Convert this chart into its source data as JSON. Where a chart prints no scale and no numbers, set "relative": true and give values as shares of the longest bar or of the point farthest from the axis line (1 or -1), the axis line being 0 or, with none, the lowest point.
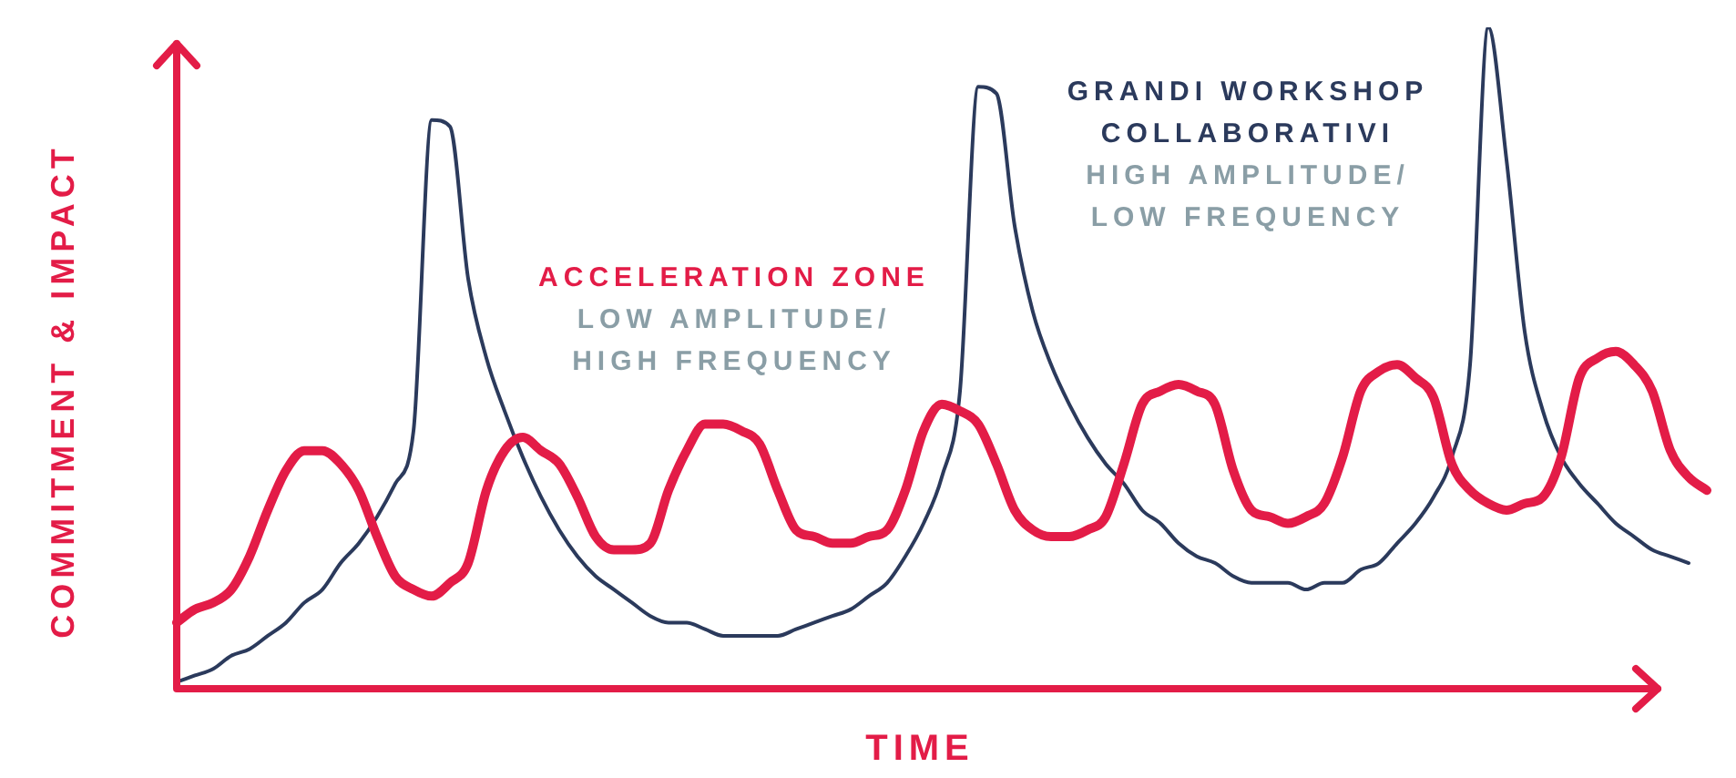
{
  "chart_data": {
    "type": "line",
    "relative": true,
    "xlabel": "TIME",
    "ylabel": "COMMITMENT & IMPACT",
    "legend": false,
    "categories": [
      null,
      null,
      null,
      null,
      null,
      null,
      null,
      null,
      null,
      null,
      null,
      null,
      null,
      null,
      null,
      null,
      null,
      null,
      null,
      null,
      null,
      null,
      null,
      null,
      null,
      null,
      null,
      null,
      null,
      null,
      null,
      null,
      null,
      null,
      null,
      null,
      null,
      null,
      null,
      null,
      null,
      null,
      null,
      null,
      null,
      null,
      null,
      null,
      null,
      null,
      null,
      null,
      null,
      null,
      null,
      null,
      null,
      null,
      null,
      null,
      null,
      null,
      null,
      null,
      null,
      null,
      null,
      null,
      null,
      null,
      null,
      null,
      null,
      null,
      null,
      null,
      null,
      null,
      null,
      null,
      null,
      null,
      null,
      null,
      null
    ],
    "series": [
      {
        "name": "ACCELERATION ZONE",
        "color": "#e31c47",
        "values": [
          0.1,
          0.12,
          0.13,
          0.15,
          0.2,
          0.27,
          0.33,
          0.36,
          0.36,
          0.34,
          0.3,
          0.23,
          0.17,
          0.15,
          0.14,
          0.16,
          0.19,
          0.3,
          0.36,
          0.38,
          0.36,
          0.34,
          0.29,
          0.23,
          0.21,
          0.21,
          0.22,
          0.3,
          0.36,
          0.4,
          0.4,
          0.39,
          0.37,
          0.3,
          0.24,
          0.23,
          0.22,
          0.22,
          0.23,
          0.24,
          0.3,
          0.39,
          0.43,
          0.42,
          0.4,
          0.34,
          0.27,
          0.24,
          0.23,
          0.23,
          0.24,
          0.26,
          0.34,
          0.43,
          0.45,
          0.46,
          0.45,
          0.43,
          0.33,
          0.27,
          0.26,
          0.25,
          0.26,
          0.28,
          0.35,
          0.45,
          0.48,
          0.49,
          0.47,
          0.44,
          0.34,
          0.3,
          0.28,
          0.27,
          0.28,
          0.29,
          0.35,
          0.47,
          0.5,
          0.51,
          0.49,
          0.45,
          0.36,
          0.32,
          0.3
        ]
      },
      {
        "name": "GRANDI WORKSHOP COLLABORATIVI",
        "color": "#2b3a5c",
        "values": [
          0.01,
          0.02,
          0.03,
          0.05,
          0.06,
          0.08,
          0.1,
          0.13,
          0.15,
          0.19,
          0.22,
          0.26,
          0.31,
          0.39,
          0.86,
          0.85,
          0.62,
          0.5,
          0.42,
          0.35,
          0.29,
          0.24,
          0.2,
          0.17,
          0.15,
          0.13,
          0.11,
          0.1,
          0.1,
          0.09,
          0.08,
          0.08,
          0.08,
          0.08,
          0.09,
          0.1,
          0.11,
          0.12,
          0.14,
          0.16,
          0.2,
          0.25,
          0.32,
          0.45,
          0.91,
          0.9,
          0.7,
          0.57,
          0.49,
          0.43,
          0.38,
          0.34,
          0.31,
          0.27,
          0.25,
          0.22,
          0.2,
          0.19,
          0.17,
          0.16,
          0.16,
          0.16,
          0.15,
          0.16,
          0.16,
          0.18,
          0.19,
          0.22,
          0.25,
          0.29,
          0.35,
          0.49,
          1,
          0.8,
          0.54,
          0.42,
          0.35,
          0.31,
          0.28,
          0.25,
          0.23,
          0.21,
          0.2,
          0.19,
          null
        ]
      }
    ],
    "annotations": [
      "LOW AMPLITUDE/\nHIGH FREQUENCY",
      "HIGH AMPLITUDE/\nLOW FREQUENCY"
    ]
  }
}
